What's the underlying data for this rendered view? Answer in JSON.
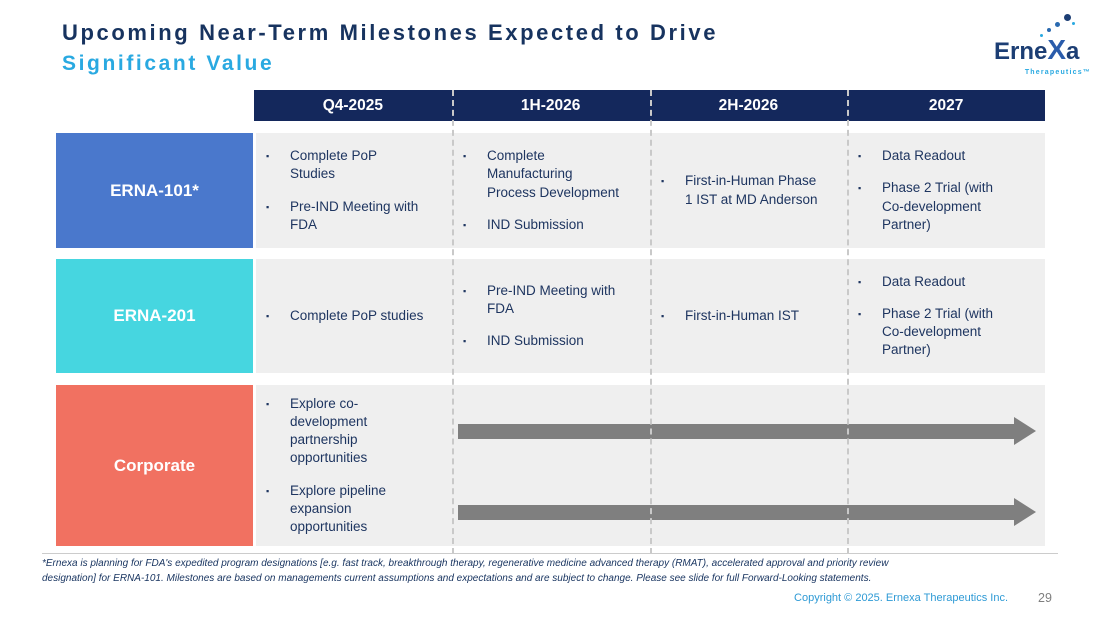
{
  "title": {
    "line1": "Upcoming Near-Term Milestones Expected to Drive",
    "line2": "Significant Value"
  },
  "logo": {
    "brand_prefix": "Erne",
    "brand_x": "X",
    "brand_suffix": "a",
    "tagline": "Therapeutics™"
  },
  "timeline": {
    "columns": [
      "Q4-2025",
      "1H-2026",
      "2H-2026",
      "2027"
    ]
  },
  "rows": [
    {
      "label": "ERNA-101*",
      "color": "#4a78cc",
      "cells": [
        [
          "Complete PoP\nStudies",
          "Pre-IND Meeting with\nFDA"
        ],
        [
          "Complete\nManufacturing\nProcess Development",
          "IND Submission"
        ],
        [
          "First-in-Human Phase\n1 IST at MD Anderson"
        ],
        [
          "Data Readout",
          "Phase 2 Trial (with\nCo-development\nPartner)"
        ]
      ]
    },
    {
      "label": "ERNA-201",
      "color": "#46d6e0",
      "cells": [
        [
          "Complete PoP studies"
        ],
        [
          "Pre-IND Meeting with\nFDA",
          "IND Submission"
        ],
        [
          "First-in-Human IST"
        ],
        [
          "Data Readout",
          "Phase 2 Trial (with\nCo-development\nPartner)"
        ]
      ]
    },
    {
      "label": "Corporate",
      "color": "#f17161",
      "cells": [
        [
          "Explore co-\ndevelopment\npartnership\nopportunities",
          "Explore pipeline\nexpansion\nopportunities"
        ]
      ],
      "arrow_count": 2
    }
  ],
  "footnote": {
    "text": "*Ernexa is planning for FDA's expedited program designations [e.g. fast track, breakthrough therapy, regenerative medicine advanced therapy (RMAT), accelerated approval and priority review\ndesignation] for ERNA-101. Milestones are based on managements current assumptions and expectations and are subject to change. Please see slide for full Forward-Looking statements."
  },
  "footer": {
    "copyright": "Copyright © 2025. Ernexa Therapeutics Inc.",
    "page": "29"
  },
  "colors": {
    "header_bg": "#14285c",
    "title_navy": "#17335f",
    "accent_cyan": "#29a9e1",
    "cell_bg": "#efefef",
    "bullet_text": "#1e3560",
    "arrow_gray": "#7f7f7f",
    "copyright_blue": "#2e9ad5"
  }
}
